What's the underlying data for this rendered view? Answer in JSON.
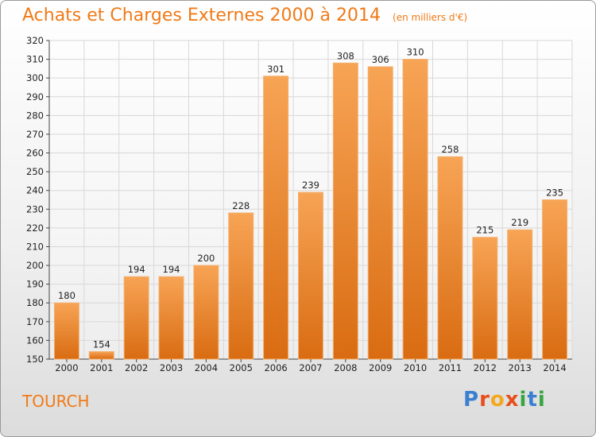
{
  "header": {
    "title": "Achats et Charges Externes 2000 à 2014",
    "subtitle": "(en milliers d'€)"
  },
  "footer": {
    "commune": "TOURCH",
    "logo_text": "Proxiti"
  },
  "colors": {
    "accent": "#f07a16",
    "bar_top": "#f7a455",
    "bar_bottom": "#d96c12",
    "grid": "#d8d8d8"
  },
  "chart_data": {
    "type": "bar",
    "title": "Achats et Charges Externes 2000 à 2014",
    "subtitle": "(en milliers d'€)",
    "xlabel": "",
    "ylabel": "",
    "categories": [
      "2000",
      "2001",
      "2002",
      "2003",
      "2004",
      "2005",
      "2006",
      "2007",
      "2008",
      "2009",
      "2010",
      "2011",
      "2012",
      "2013",
      "2014"
    ],
    "values": [
      180,
      154,
      194,
      194,
      200,
      228,
      301,
      239,
      308,
      306,
      310,
      258,
      215,
      219,
      235
    ],
    "ylim": [
      150,
      320
    ],
    "yticks": [
      150,
      160,
      170,
      180,
      190,
      200,
      210,
      220,
      230,
      240,
      250,
      260,
      270,
      280,
      290,
      300,
      310,
      320
    ],
    "grid": true,
    "legend": "none"
  }
}
